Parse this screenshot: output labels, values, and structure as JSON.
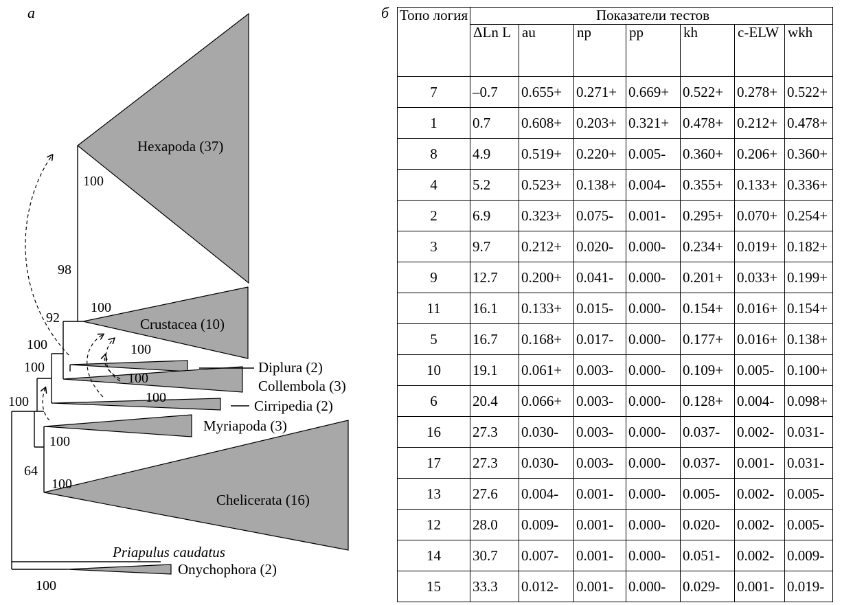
{
  "panels": {
    "a": "а",
    "b": "б"
  },
  "tree": {
    "taxa": {
      "hexapoda": "Hexapoda (37)",
      "crustacea": "Crustacea (10)",
      "diplura": "Diplura (2)",
      "collembola": "Collembola (3)",
      "cirripedia": "Cirripedia (2)",
      "myriapoda": "Myriapoda (3)",
      "chelicerata": "Chelicerata (16)",
      "priapulus": "Priapulus caudatus",
      "onychophora": "Onychophora (2)"
    },
    "support": {
      "hexapoda": "100",
      "n98": "98",
      "crustacea": "100",
      "n92": "92",
      "diplura": "100",
      "n100a": "100",
      "collembola": "100",
      "n100b": "100",
      "cirripedia": "100",
      "n100root": "100",
      "myriapoda": "100",
      "n64": "64",
      "chelicerata": "100",
      "onychophora": "100"
    },
    "colors": {
      "clade_fill": "#a8a8a8",
      "line": "#000000"
    }
  },
  "table": {
    "header": {
      "topology": "Топо логия",
      "group": "Показатели тестов",
      "columns": [
        "ΔLn L",
        "au",
        "np",
        "pp",
        "kh",
        "c-ELW",
        "wkh"
      ]
    },
    "rows": [
      [
        "7",
        "–0.7",
        "0.655+",
        "0.271+",
        "0.669+",
        "0.522+",
        "0.278+",
        "0.522+"
      ],
      [
        "1",
        "0.7",
        "0.608+",
        "0.203+",
        "0.321+",
        "0.478+",
        "0.212+",
        "0.478+"
      ],
      [
        "8",
        "4.9",
        "0.519+",
        "0.220+",
        "0.005-",
        "0.360+",
        "0.206+",
        "0.360+"
      ],
      [
        "4",
        "5.2",
        "0.523+",
        "0.138+",
        "0.004-",
        "0.355+",
        "0.133+",
        "0.336+"
      ],
      [
        "2",
        "6.9",
        "0.323+",
        "0.075-",
        "0.001-",
        "0.295+",
        "0.070+",
        "0.254+"
      ],
      [
        "3",
        "9.7",
        "0.212+",
        "0.020-",
        "0.000-",
        "0.234+",
        "0.019+",
        "0.182+"
      ],
      [
        "9",
        "12.7",
        "0.200+",
        "0.041-",
        "0.000-",
        "0.201+",
        "0.033+",
        "0.199+"
      ],
      [
        "11",
        "16.1",
        "0.133+",
        "0.015-",
        "0.000-",
        "0.154+",
        "0.016+",
        "0.154+"
      ],
      [
        "5",
        "16.7",
        "0.168+",
        "0.017-",
        "0.000-",
        "0.177+",
        "0.016+",
        "0.138+"
      ],
      [
        "10",
        "19.1",
        "0.061+",
        "0.003-",
        "0.000-",
        "0.109+",
        "0.005-",
        "0.100+"
      ],
      [
        "6",
        "20.4",
        "0.066+",
        "0.003-",
        "0.000-",
        "0.128+",
        "0.004-",
        "0.098+"
      ],
      [
        "16",
        "27.3",
        "0.030-",
        "0.003-",
        "0.000-",
        "0.037-",
        "0.002-",
        "0.031-"
      ],
      [
        "17",
        "27.3",
        "0.030-",
        "0.003-",
        "0.000-",
        "0.037-",
        "0.001-",
        "0.031-"
      ],
      [
        "13",
        "27.6",
        "0.004-",
        "0.001-",
        "0.000-",
        "0.005-",
        "0.002-",
        "0.005-"
      ],
      [
        "12",
        "28.0",
        "0.009-",
        "0.001-",
        "0.000-",
        "0.020-",
        "0.002-",
        "0.005-"
      ],
      [
        "14",
        "30.7",
        "0.007-",
        "0.001-",
        "0.000-",
        "0.051-",
        "0.002-",
        "0.009-"
      ],
      [
        "15",
        "33.3",
        "0.012-",
        "0.001-",
        "0.000-",
        "0.029-",
        "0.001-",
        "0.019-"
      ]
    ]
  }
}
